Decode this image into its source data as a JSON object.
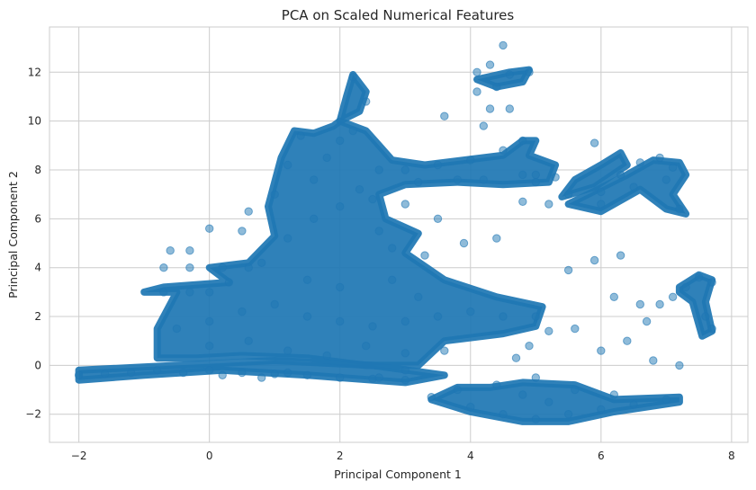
{
  "chart_data": {
    "type": "scatter",
    "title": "PCA on Scaled Numerical Features",
    "xlabel": "Principal Component 1",
    "ylabel": "Principal Component 2",
    "xlim": [
      -2.45,
      8.25
    ],
    "ylim": [
      -3.15,
      13.85
    ],
    "x_ticks": [
      -2,
      0,
      2,
      4,
      6,
      8
    ],
    "y_ticks": [
      -2,
      0,
      2,
      4,
      6,
      8,
      10,
      12
    ],
    "grid": true,
    "point_color": "#1f77b4",
    "point_alpha": 0.5,
    "series": [
      {
        "values": [
          {
            "x": -2.0,
            "y": -0.4
          },
          {
            "x": -1.6,
            "y": -0.35
          },
          {
            "x": -1.2,
            "y": -0.3
          },
          {
            "x": -0.8,
            "y": -0.2
          },
          {
            "x": -0.4,
            "y": -0.3
          },
          {
            "x": 0.0,
            "y": -0.2
          },
          {
            "x": 0.5,
            "y": -0.3
          },
          {
            "x": 1.0,
            "y": -0.35
          },
          {
            "x": 1.5,
            "y": -0.4
          },
          {
            "x": 2.0,
            "y": -0.5
          },
          {
            "x": 2.5,
            "y": -0.55
          },
          {
            "x": 3.0,
            "y": -0.6
          },
          {
            "x": -0.7,
            "y": 3.0
          },
          {
            "x": -0.3,
            "y": 3.0
          },
          {
            "x": 0.0,
            "y": 3.0
          },
          {
            "x": -0.7,
            "y": 4.0
          },
          {
            "x": -0.3,
            "y": 4.0
          },
          {
            "x": 0.2,
            "y": 4.0
          },
          {
            "x": 0.6,
            "y": 4.0
          },
          {
            "x": -0.6,
            "y": 4.7
          },
          {
            "x": -0.3,
            "y": 4.7
          },
          {
            "x": -0.5,
            "y": 1.5
          },
          {
            "x": 0.0,
            "y": 1.8
          },
          {
            "x": 0.5,
            "y": 2.2
          },
          {
            "x": 1.0,
            "y": 2.5
          },
          {
            "x": 1.5,
            "y": 2.0
          },
          {
            "x": 2.0,
            "y": 1.8
          },
          {
            "x": 2.5,
            "y": 1.6
          },
          {
            "x": 3.0,
            "y": 1.8
          },
          {
            "x": 3.5,
            "y": 2.0
          },
          {
            "x": 4.0,
            "y": 2.2
          },
          {
            "x": 4.5,
            "y": 2.0
          },
          {
            "x": 5.0,
            "y": 2.0
          },
          {
            "x": 0.0,
            "y": 0.8
          },
          {
            "x": 0.6,
            "y": 1.0
          },
          {
            "x": 1.2,
            "y": 0.6
          },
          {
            "x": 1.8,
            "y": 0.4
          },
          {
            "x": 2.4,
            "y": 0.8
          },
          {
            "x": 3.0,
            "y": 0.5
          },
          {
            "x": 3.6,
            "y": 0.6
          },
          {
            "x": 0.3,
            "y": 3.4
          },
          {
            "x": 0.8,
            "y": 4.2
          },
          {
            "x": 1.2,
            "y": 5.2
          },
          {
            "x": 1.6,
            "y": 6.0
          },
          {
            "x": 1.0,
            "y": 7.0
          },
          {
            "x": 1.2,
            "y": 8.2
          },
          {
            "x": 1.4,
            "y": 9.4
          },
          {
            "x": 1.8,
            "y": 8.5
          },
          {
            "x": 2.0,
            "y": 9.2
          },
          {
            "x": 2.2,
            "y": 9.6
          },
          {
            "x": 2.4,
            "y": 10.8
          },
          {
            "x": 2.2,
            "y": 11.8
          },
          {
            "x": 1.6,
            "y": 7.6
          },
          {
            "x": 2.3,
            "y": 7.2
          },
          {
            "x": 2.0,
            "y": 6.5
          },
          {
            "x": 2.6,
            "y": 8.0
          },
          {
            "x": 2.5,
            "y": 6.8
          },
          {
            "x": 3.0,
            "y": 8.0
          },
          {
            "x": 3.5,
            "y": 8.2
          },
          {
            "x": 4.0,
            "y": 8.4
          },
          {
            "x": 4.5,
            "y": 8.8
          },
          {
            "x": 4.8,
            "y": 9.2
          },
          {
            "x": 3.2,
            "y": 7.5
          },
          {
            "x": 3.8,
            "y": 7.6
          },
          {
            "x": 4.2,
            "y": 7.6
          },
          {
            "x": 4.8,
            "y": 7.8
          },
          {
            "x": 5.0,
            "y": 7.5
          },
          {
            "x": 3.0,
            "y": 6.6
          },
          {
            "x": 3.5,
            "y": 6.0
          },
          {
            "x": 2.8,
            "y": 4.8
          },
          {
            "x": 3.3,
            "y": 4.5
          },
          {
            "x": 3.6,
            "y": 10.2
          },
          {
            "x": 2.0,
            "y": 3.2
          },
          {
            "x": 2.8,
            "y": 3.5
          },
          {
            "x": 3.2,
            "y": 2.8
          },
          {
            "x": 1.5,
            "y": 3.5
          },
          {
            "x": 4.1,
            "y": 12.0
          },
          {
            "x": 4.3,
            "y": 12.3
          },
          {
            "x": 4.5,
            "y": 13.1
          },
          {
            "x": 4.6,
            "y": 11.9
          },
          {
            "x": 4.9,
            "y": 12.0
          },
          {
            "x": 4.4,
            "y": 11.4
          },
          {
            "x": 4.1,
            "y": 11.2
          },
          {
            "x": 4.3,
            "y": 10.5
          },
          {
            "x": 4.6,
            "y": 10.5
          },
          {
            "x": 4.2,
            "y": 9.8
          },
          {
            "x": 5.0,
            "y": 7.8
          },
          {
            "x": 5.3,
            "y": 7.7
          },
          {
            "x": 5.5,
            "y": 7.0
          },
          {
            "x": 4.8,
            "y": 6.7
          },
          {
            "x": 5.2,
            "y": 6.6
          },
          {
            "x": 5.9,
            "y": 9.1
          },
          {
            "x": 6.0,
            "y": 7.1
          },
          {
            "x": 6.3,
            "y": 7.8
          },
          {
            "x": 6.6,
            "y": 8.3
          },
          {
            "x": 6.9,
            "y": 8.5
          },
          {
            "x": 6.0,
            "y": 6.6
          },
          {
            "x": 6.5,
            "y": 7.3
          },
          {
            "x": 7.0,
            "y": 7.6
          },
          {
            "x": 7.2,
            "y": 6.4
          },
          {
            "x": 7.1,
            "y": 8.1
          },
          {
            "x": 6.3,
            "y": 4.5
          },
          {
            "x": 5.9,
            "y": 4.3
          },
          {
            "x": 5.5,
            "y": 3.9
          },
          {
            "x": 6.2,
            "y": 2.8
          },
          {
            "x": 6.6,
            "y": 2.5
          },
          {
            "x": 6.9,
            "y": 2.5
          },
          {
            "x": 7.1,
            "y": 2.8
          },
          {
            "x": 7.3,
            "y": 3.2
          },
          {
            "x": 7.5,
            "y": 3.6
          },
          {
            "x": 7.7,
            "y": 3.4
          },
          {
            "x": 7.6,
            "y": 2.0
          },
          {
            "x": 7.7,
            "y": 1.5
          },
          {
            "x": 6.7,
            "y": 1.8
          },
          {
            "x": 6.4,
            "y": 1.0
          },
          {
            "x": 5.6,
            "y": 1.5
          },
          {
            "x": 5.2,
            "y": 1.4
          },
          {
            "x": 4.9,
            "y": 0.8
          },
          {
            "x": 6.0,
            "y": 0.6
          },
          {
            "x": 6.8,
            "y": 0.2
          },
          {
            "x": 7.2,
            "y": 0.0
          },
          {
            "x": 4.7,
            "y": 0.3
          },
          {
            "x": 5.0,
            "y": -0.5
          },
          {
            "x": 4.4,
            "y": -0.8
          },
          {
            "x": 3.8,
            "y": -1.0
          },
          {
            "x": 3.4,
            "y": -1.3
          },
          {
            "x": 4.0,
            "y": -1.7
          },
          {
            "x": 4.5,
            "y": -2.0
          },
          {
            "x": 5.0,
            "y": -2.2
          },
          {
            "x": 5.5,
            "y": -2.0
          },
          {
            "x": 6.0,
            "y": -1.8
          },
          {
            "x": 6.5,
            "y": -1.6
          },
          {
            "x": 7.0,
            "y": -1.4
          },
          {
            "x": 5.2,
            "y": -1.5
          },
          {
            "x": 4.8,
            "y": -1.2
          },
          {
            "x": 5.6,
            "y": -1.0
          },
          {
            "x": 6.2,
            "y": -1.2
          },
          {
            "x": 3.0,
            "y": -0.2
          },
          {
            "x": 2.6,
            "y": -0.5
          },
          {
            "x": 0.2,
            "y": -0.4
          },
          {
            "x": 0.8,
            "y": -0.5
          },
          {
            "x": 1.2,
            "y": -0.3
          },
          {
            "x": 0.5,
            "y": 5.5
          },
          {
            "x": 0.0,
            "y": 5.6
          },
          {
            "x": 0.6,
            "y": 6.3
          },
          {
            "x": 2.6,
            "y": 5.5
          },
          {
            "x": 3.9,
            "y": 5.0
          },
          {
            "x": 4.4,
            "y": 5.2
          }
        ]
      }
    ]
  }
}
